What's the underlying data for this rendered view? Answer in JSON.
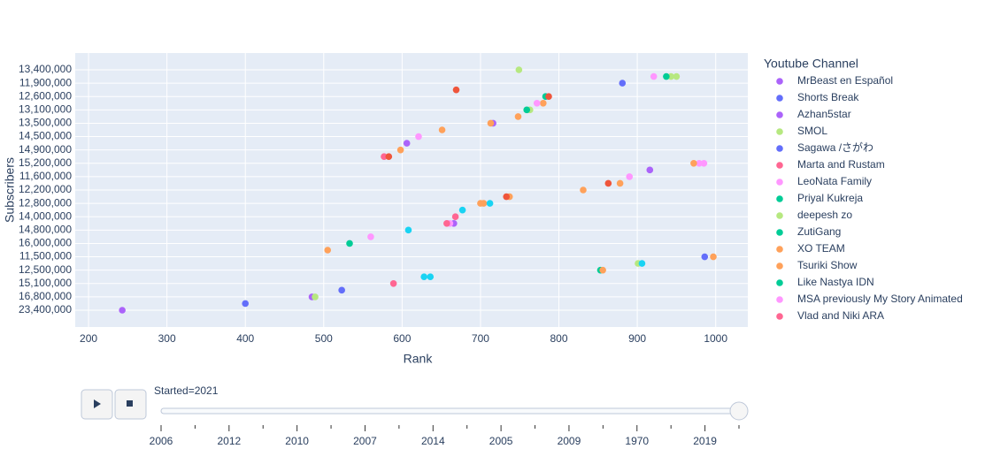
{
  "chart_data": {
    "type": "scatter",
    "x_label": "Rank",
    "y_label": "Subscribers",
    "legend_title": "Youtube Channel",
    "xlim": [
      183,
      1041
    ],
    "xticks": [
      200,
      300,
      400,
      500,
      600,
      700,
      800,
      900,
      1000
    ],
    "y_categories": [
      "23,400,000",
      null,
      "16,800,000",
      null,
      "15,100,000",
      null,
      "12,500,000",
      null,
      "11,500,000",
      null,
      "16,000,000",
      null,
      "14,800,000",
      null,
      "14,000,000",
      null,
      "12,800,000",
      null,
      "12,200,000",
      null,
      "11,600,000",
      null,
      "15,200,000",
      null,
      "14,900,000",
      null,
      "14,500,000",
      null,
      "13,500,000",
      null,
      "13,100,000",
      null,
      "12,600,000",
      null,
      "11,900,000",
      null,
      "13,400,000"
    ],
    "grid": true,
    "legend": "right",
    "series": [
      {
        "name": "MrBeast en Español",
        "color": "#ab63fa",
        "x": [
          243,
          666,
          916
        ],
        "y": [
          0,
          13,
          21
        ]
      },
      {
        "name": "Shorts Break",
        "color": "#636efa",
        "x": [
          400,
          986
        ],
        "y": [
          1,
          8
        ]
      },
      {
        "name": "Azhan5star",
        "color": "#ab63fa",
        "x": [
          485,
          606,
          716
        ],
        "y": [
          2,
          25,
          28
        ]
      },
      {
        "name": "SMOL",
        "color": "#b6e880",
        "x": [
          489,
          763,
          943
        ],
        "y": [
          2,
          30,
          35
        ]
      },
      {
        "name": "Sagawa /さがわ",
        "color": "#636efa",
        "x": [
          523,
          881
        ],
        "y": [
          3,
          34
        ]
      },
      {
        "name": "Marta and Rustam",
        "color": "#ff6692",
        "x": [
          589,
          668
        ],
        "y": [
          4,
          14
        ]
      },
      {
        "name": "LeoNata Family",
        "color": "#ff97ff",
        "x": [
          560,
          890,
          979,
          621
        ],
        "y": [
          11,
          20,
          22,
          26
        ]
      },
      {
        "name": "Priyal Kukreja",
        "color": "#00cc96",
        "x": [
          853,
          533
        ],
        "y": [
          6,
          10
        ]
      },
      {
        "name": "deepesh zo",
        "color": "#b6e880",
        "x": [
          901,
          950,
          749
        ],
        "y": [
          7,
          35,
          36
        ]
      },
      {
        "name": "ZutiGang",
        "color": "#00cc96",
        "x": [
          759,
          783
        ],
        "y": [
          30,
          32
        ]
      },
      {
        "name": "XO TEAM",
        "color": "#ffa15a",
        "x": [
          856,
          505,
          704,
          831,
          972,
          651,
          748
        ],
        "y": [
          6,
          9,
          16,
          18,
          22,
          27,
          29
        ]
      },
      {
        "name": "Tsuriki Show",
        "color": "#ffa15a",
        "x": [
          997,
          700,
          737,
          878,
          598,
          713,
          780
        ],
        "y": [
          8,
          16,
          17,
          19,
          24,
          28,
          31
        ]
      },
      {
        "name": "Like Nastya IDN",
        "color": "#00cc96",
        "x": [
          937
        ],
        "y": [
          35
        ]
      },
      {
        "name": "MSA previously My Story Animated",
        "color": "#ff97ff",
        "x": [
          661,
          985,
          772,
          921
        ],
        "y": [
          13,
          22,
          31,
          35
        ]
      },
      {
        "name": "Vlad and Niki ARA",
        "color": "#ff6692",
        "x": [
          657,
          577
        ],
        "y": [
          13,
          23
        ]
      },
      {
        "color": "#ef553b",
        "x": [
          733,
          863,
          583,
          787,
          669
        ],
        "y": [
          17,
          19,
          23,
          32,
          33
        ]
      },
      {
        "color": "#19d3f3",
        "x": [
          628,
          636,
          906,
          608,
          677,
          712
        ],
        "y": [
          5,
          5,
          7,
          12,
          15,
          16
        ]
      }
    ],
    "slider": {
      "prefix": "Started=",
      "current": "2021",
      "steps": [
        "2006",
        null,
        "2012",
        null,
        "2010",
        null,
        "2007",
        null,
        "2014",
        null,
        "2005",
        null,
        "2009",
        null,
        "1970",
        null,
        "2019",
        null
      ]
    }
  }
}
